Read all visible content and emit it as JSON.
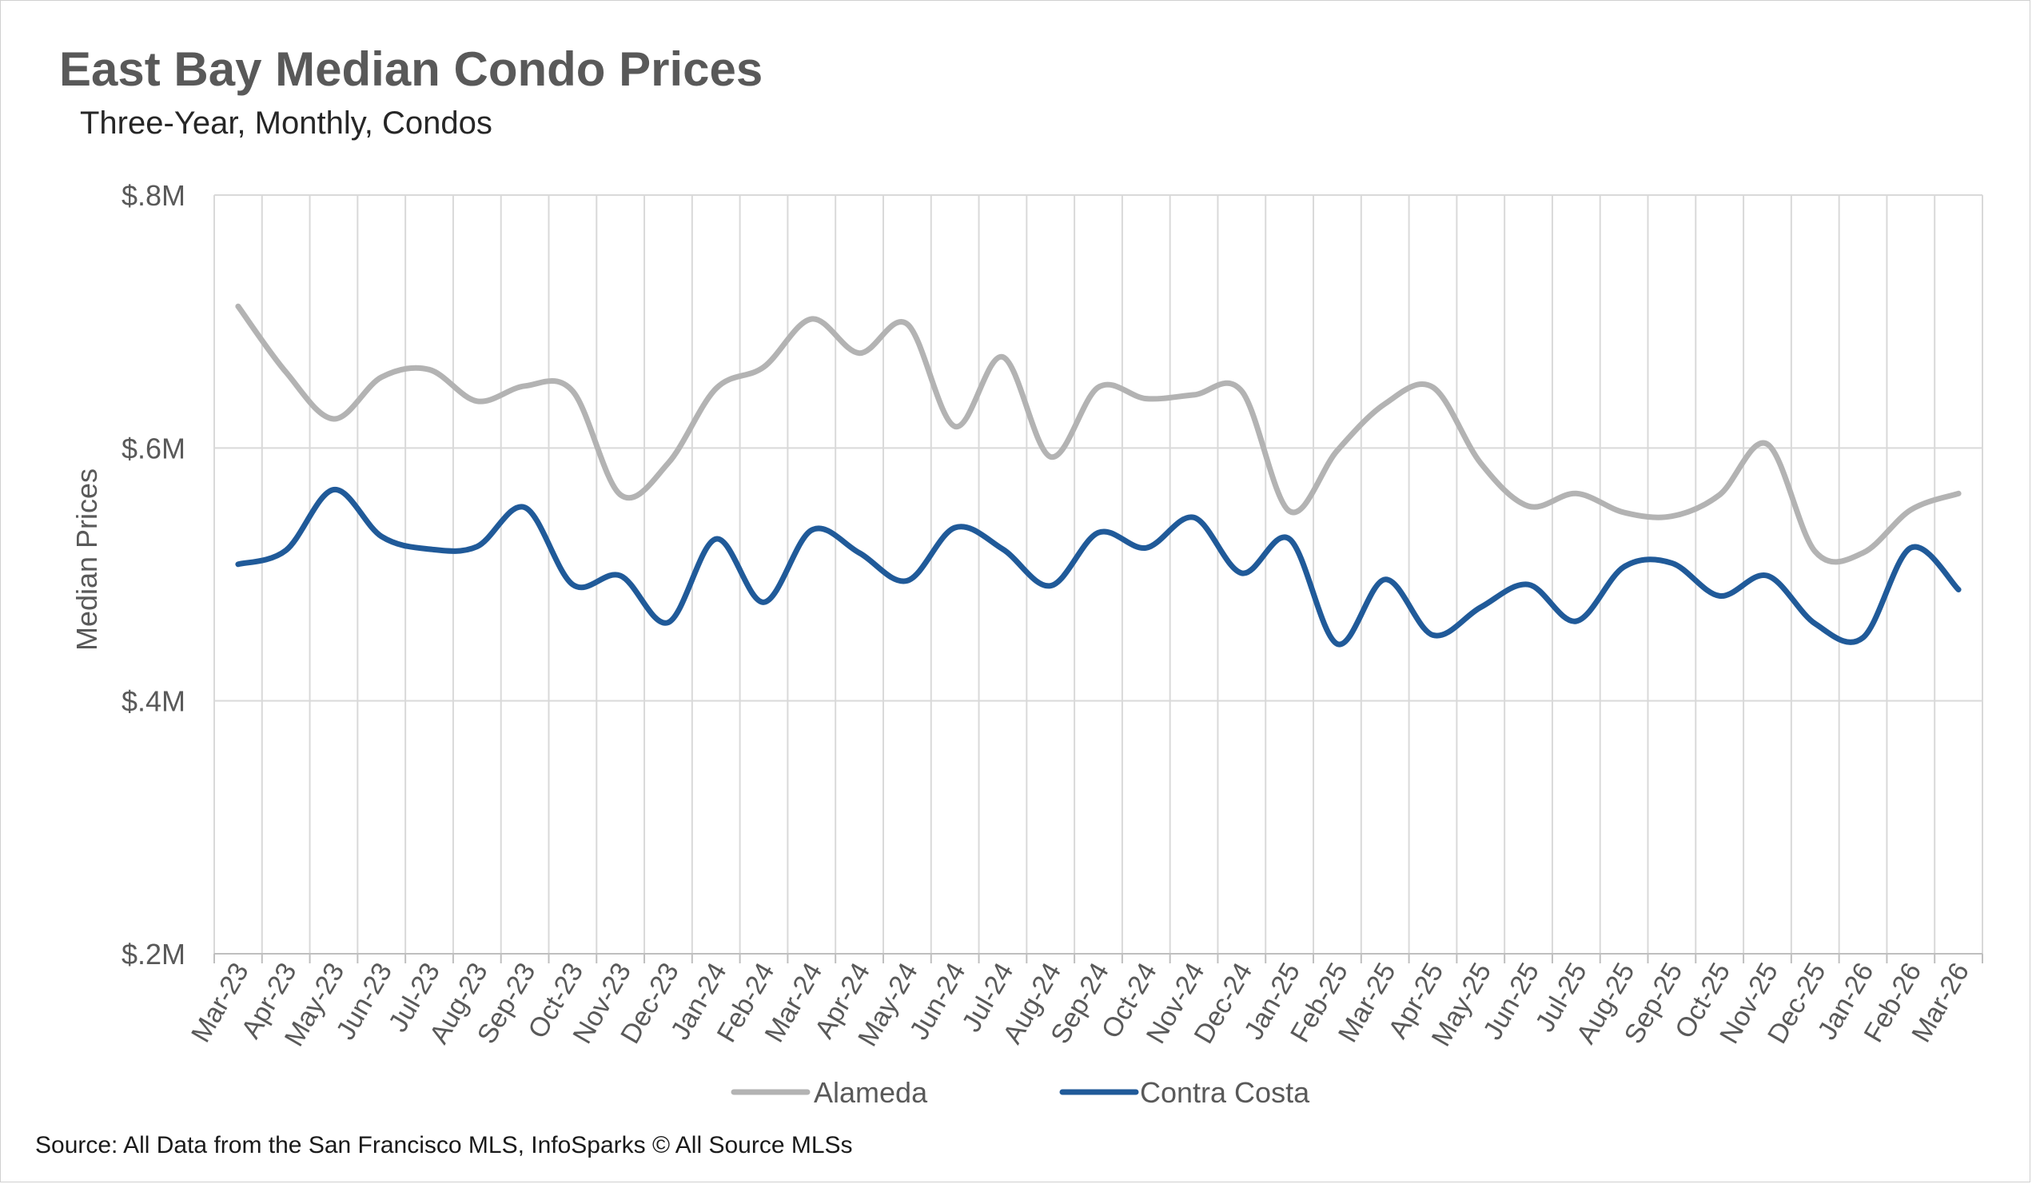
{
  "title": "East Bay Median Condo Prices",
  "subtitle": "Three-Year, Monthly, Condos",
  "source": "Source: All Data from the San Francisco MLS, InfoSparks © All Source MLSs",
  "chart_data": {
    "type": "line",
    "title": "East Bay Median Condo Prices",
    "subtitle": "Three-Year, Monthly, Condos",
    "xlabel": "",
    "ylabel": "Median Prices",
    "ylim": [
      200000,
      800000
    ],
    "yticks": [
      200000,
      400000,
      600000,
      800000
    ],
    "ytick_labels": [
      "$.2M",
      "$.4M",
      "$.6M",
      "$.8M"
    ],
    "grid": "on",
    "legend": "bottom",
    "categories": [
      "Mar-23",
      "Apr-23",
      "May-23",
      "Jun-23",
      "Jul-23",
      "Aug-23",
      "Sep-23",
      "Oct-23",
      "Nov-23",
      "Dec-23",
      "Jan-24",
      "Feb-24",
      "Mar-24",
      "Apr-24",
      "May-24",
      "Jun-24",
      "Jul-24",
      "Aug-24",
      "Sep-24",
      "Oct-24",
      "Nov-24",
      "Dec-24",
      "Jan-25",
      "Feb-25",
      "Mar-25",
      "Apr-25",
      "May-25",
      "Jun-25",
      "Jul-25",
      "Aug-25",
      "Sep-25",
      "Oct-25",
      "Nov-25",
      "Dec-25",
      "Jan-26",
      "Feb-26",
      "Mar-26"
    ],
    "series": [
      {
        "name": "Alameda",
        "color": "#b3b3b3",
        "values": [
          712000,
          660000,
          623000,
          656000,
          662000,
          637000,
          649000,
          645000,
          563000,
          588000,
          647000,
          664000,
          702000,
          675000,
          698000,
          617000,
          672000,
          593000,
          648000,
          639000,
          642000,
          645000,
          550000,
          598000,
          635000,
          648000,
          588000,
          554000,
          564000,
          549000,
          546000,
          563000,
          603000,
          518000,
          517000,
          551000,
          564000
        ]
      },
      {
        "name": "Contra Costa",
        "color": "#205a99",
        "values": [
          508000,
          519000,
          567000,
          530000,
          520000,
          522000,
          553000,
          492000,
          499000,
          462000,
          528000,
          478000,
          535000,
          517000,
          495000,
          537000,
          520000,
          491000,
          533000,
          521000,
          545000,
          501000,
          528000,
          445000,
          496000,
          452000,
          474000,
          492000,
          463000,
          506000,
          509000,
          483000,
          499000,
          461000,
          450000,
          521000,
          488000
        ]
      }
    ]
  }
}
